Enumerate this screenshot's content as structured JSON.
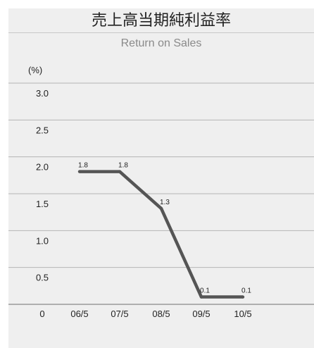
{
  "chart_data": {
    "type": "line",
    "title": "売上高当期純利益率",
    "subtitle": "Return on Sales",
    "unit_label": "(%)",
    "categories": [
      "06/5",
      "07/5",
      "08/5",
      "09/5",
      "10/5"
    ],
    "series": [
      {
        "values": [
          1.8,
          1.8,
          1.3,
          0.1,
          0.1
        ]
      }
    ],
    "data_labels": [
      "1.8",
      "1.8",
      "1.3",
      "0.1",
      "0.1"
    ],
    "y_ticks": [
      "0",
      "0.5",
      "1.0",
      "1.5",
      "2.0",
      "2.5",
      "3.0"
    ],
    "ylim": [
      0,
      3.0
    ],
    "grid": true,
    "colors": {
      "line": "#555555",
      "grid": "#b4b4b4",
      "background": "#efefef"
    }
  }
}
